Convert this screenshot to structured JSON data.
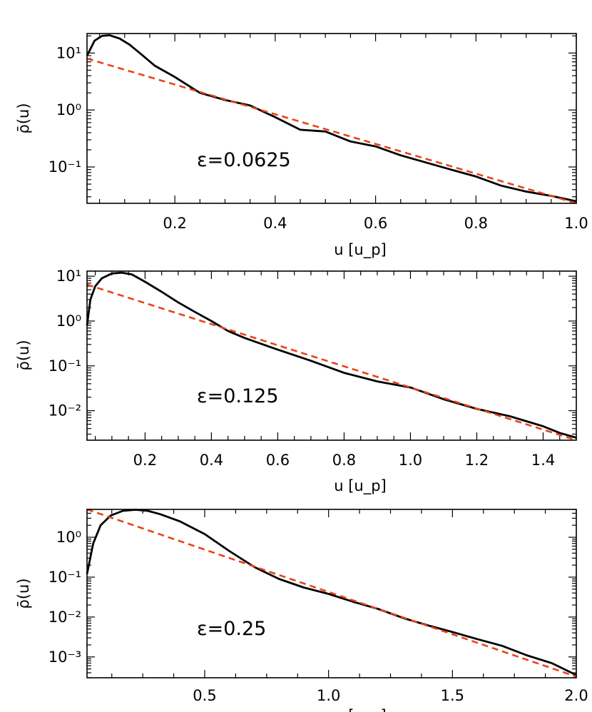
{
  "colors": {
    "data": "#000000",
    "fit": "#e8431a"
  },
  "chart_data": [
    {
      "type": "line",
      "annotation": "ε=0.0625",
      "xlabel": "u [u_p]",
      "ylabel": "ρ̄(u)",
      "xscale": "linear",
      "yscale": "log",
      "xlim": [
        0.025,
        1.0
      ],
      "ylim": [
        0.023,
        22
      ],
      "xticks": [
        0.2,
        0.4,
        0.6,
        0.8,
        1.0
      ],
      "xtick_labels": [
        "0.2",
        "0.4",
        "0.6",
        "0.8",
        "1.0"
      ],
      "yticks_exp": [
        -1,
        0,
        1
      ],
      "series": [
        {
          "style": "solid",
          "x": [
            0.025,
            0.04,
            0.055,
            0.07,
            0.09,
            0.11,
            0.13,
            0.16,
            0.2,
            0.25,
            0.3,
            0.35,
            0.4,
            0.45,
            0.5,
            0.55,
            0.6,
            0.65,
            0.7,
            0.75,
            0.8,
            0.85,
            0.9,
            0.95,
            1.0
          ],
          "y": [
            9.0,
            16.5,
            20.0,
            20.5,
            18.0,
            14.0,
            10.0,
            6.0,
            3.8,
            2.0,
            1.5,
            1.2,
            0.75,
            0.45,
            0.42,
            0.28,
            0.23,
            0.16,
            0.12,
            0.09,
            0.068,
            0.047,
            0.037,
            0.031,
            0.025
          ]
        },
        {
          "style": "dashed",
          "x": [
            0.025,
            1.0
          ],
          "y": [
            8.0,
            0.023
          ]
        }
      ]
    },
    {
      "type": "line",
      "annotation": "ε=0.125",
      "xlabel": "u [u_p]",
      "ylabel": "ρ̄(u)",
      "xscale": "linear",
      "yscale": "log",
      "xlim": [
        0.025,
        1.5
      ],
      "ylim": [
        0.0022,
        13
      ],
      "xticks": [
        0.2,
        0.4,
        0.6,
        0.8,
        1.0,
        1.2,
        1.4
      ],
      "xtick_labels": [
        "0.2",
        "0.4",
        "0.6",
        "0.8",
        "1.0",
        "1.2",
        "1.4"
      ],
      "yticks_exp": [
        -2,
        -1,
        0,
        1
      ],
      "series": [
        {
          "style": "solid",
          "x": [
            0.025,
            0.035,
            0.05,
            0.07,
            0.1,
            0.13,
            0.16,
            0.2,
            0.25,
            0.3,
            0.35,
            0.4,
            0.45,
            0.5,
            0.6,
            0.7,
            0.8,
            0.9,
            1.0,
            1.1,
            1.2,
            1.3,
            1.4,
            1.45,
            1.5
          ],
          "y": [
            0.8,
            3.0,
            6.0,
            9.0,
            11.5,
            12.0,
            11.0,
            7.5,
            4.5,
            2.6,
            1.6,
            1.0,
            0.6,
            0.42,
            0.23,
            0.13,
            0.07,
            0.045,
            0.033,
            0.018,
            0.011,
            0.0075,
            0.0045,
            0.0032,
            0.0025
          ]
        },
        {
          "style": "dashed",
          "x": [
            0.025,
            1.5
          ],
          "y": [
            6.5,
            0.0022
          ]
        }
      ]
    },
    {
      "type": "line",
      "annotation": "ε=0.25",
      "xlabel": "u [u_p]",
      "ylabel": "ρ̄(u)",
      "xscale": "linear",
      "yscale": "log",
      "xlim": [
        0.025,
        2.0
      ],
      "ylim": [
        0.0003,
        5
      ],
      "xticks": [
        0.5,
        1.0,
        1.5,
        2.0
      ],
      "xtick_labels": [
        "0.5",
        "1.0",
        "1.5",
        "2.0"
      ],
      "yticks_exp": [
        -3,
        -2,
        -1,
        0
      ],
      "series": [
        {
          "style": "solid",
          "x": [
            0.025,
            0.05,
            0.08,
            0.12,
            0.17,
            0.22,
            0.27,
            0.32,
            0.4,
            0.5,
            0.6,
            0.7,
            0.8,
            0.9,
            1.0,
            1.1,
            1.2,
            1.3,
            1.4,
            1.5,
            1.6,
            1.7,
            1.8,
            1.9,
            2.0
          ],
          "y": [
            0.12,
            0.7,
            2.0,
            3.5,
            4.6,
            4.9,
            4.6,
            3.8,
            2.5,
            1.2,
            0.45,
            0.18,
            0.09,
            0.055,
            0.038,
            0.024,
            0.016,
            0.0095,
            0.0062,
            0.0042,
            0.0028,
            0.0019,
            0.0011,
            0.0007,
            0.00035
          ]
        },
        {
          "style": "dashed",
          "x": [
            0.025,
            2.0
          ],
          "y": [
            5.0,
            0.00032
          ]
        }
      ]
    }
  ]
}
